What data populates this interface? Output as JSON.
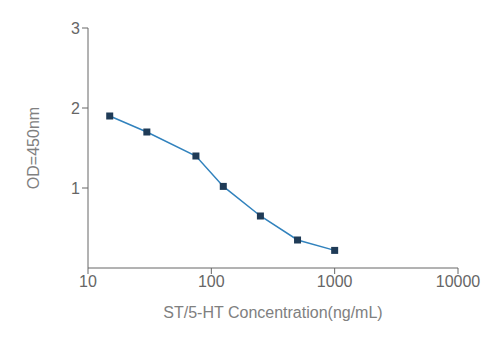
{
  "chart_data": {
    "type": "line",
    "x": [
      15,
      30,
      75,
      125,
      250,
      500,
      1000
    ],
    "values": [
      1.9,
      1.7,
      1.4,
      1.02,
      0.65,
      0.35,
      0.22
    ],
    "xlabel": "ST/5-HT Concentration(ng/mL)",
    "ylabel": "OD=450nm",
    "xlim": [
      10,
      10000
    ],
    "ylim": [
      0,
      3
    ],
    "xticks": [
      10,
      100,
      1000,
      10000
    ],
    "yticks": [
      1,
      2,
      3
    ],
    "log": "x",
    "marker": "square"
  }
}
